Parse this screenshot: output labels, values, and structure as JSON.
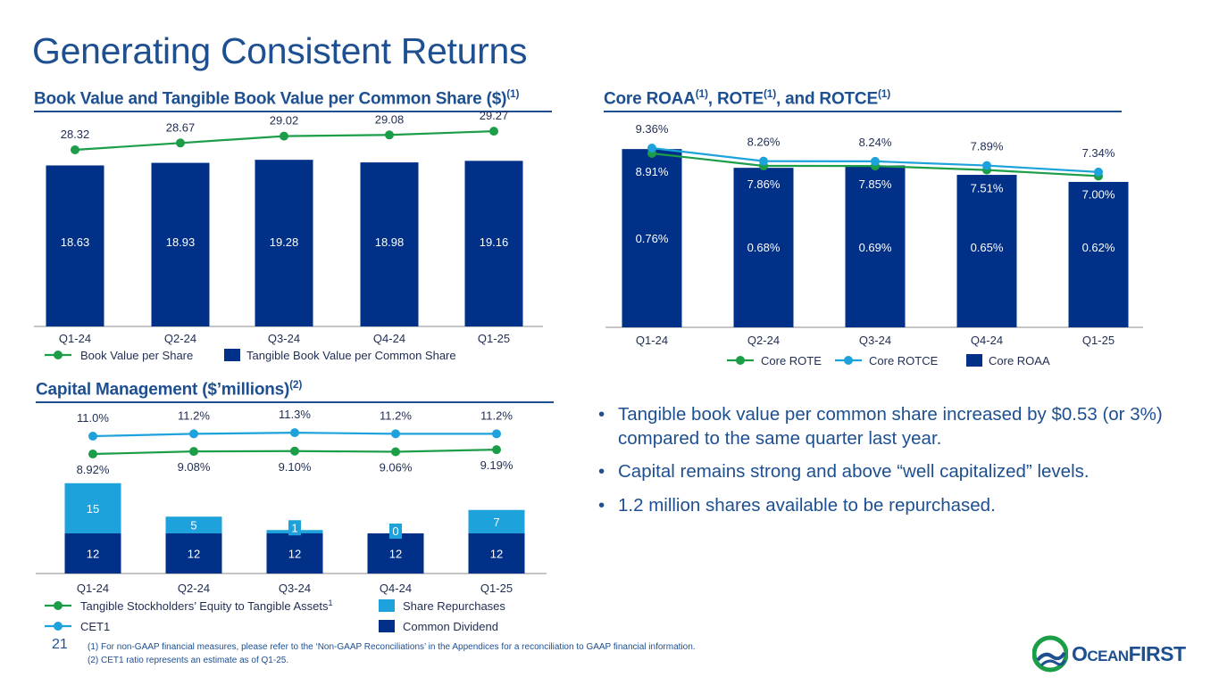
{
  "page": {
    "title": "Generating Consistent Returns",
    "page_number": "21",
    "footnotes": [
      "(1)  For non-GAAP financial measures, please refer to the ‘Non-GAAP Reconciliations’ in the Appendices for a reconciliation to GAAP financial information.",
      "(2)  CET1 ratio represents an estimate as of Q1-25."
    ],
    "logo": {
      "first": "O",
      "rest": "CEAN",
      "last": "FIRST"
    }
  },
  "sections": {
    "bv": {
      "title": "Book Value and Tangible Book Value per Common Share ($)",
      "sup": "(1)"
    },
    "returns": {
      "t1": "Core ROAA",
      "s1": "(1)",
      "t2": ", ROTE",
      "s2": "(1)",
      "t3": ", and ROTCE",
      "s3": "(1)"
    },
    "capital": {
      "title": "Capital Management ($’millions)",
      "sup": "(2)"
    }
  },
  "bullets": [
    "Tangible book value per common share increased by $0.53 (or 3%) compared to the same quarter last year.",
    "Capital remains strong and above “well capitalized” levels.",
    "1.2 million shares available to be repurchased."
  ],
  "colors": {
    "navy": "#003087",
    "green": "#1c9d48",
    "blue": "#1ea2dc",
    "text": "#1f2d52",
    "axis": "#8c8c8c"
  },
  "chart_data": [
    {
      "id": "bv",
      "type": "bar+line",
      "title": "Book Value and Tangible Book Value per Common Share ($)",
      "categories": [
        "Q1-24",
        "Q2-24",
        "Q3-24",
        "Q4-24",
        "Q1-25"
      ],
      "bars": {
        "name": "Tangible Book Value per Common Share",
        "values": [
          18.63,
          18.93,
          19.28,
          18.98,
          19.16
        ],
        "labels": [
          "18.63",
          "18.93",
          "19.28",
          "18.98",
          "19.16"
        ]
      },
      "line": {
        "name": "Book Value per Share",
        "values": [
          28.32,
          28.67,
          29.02,
          29.08,
          29.27
        ],
        "labels": [
          "28.32",
          "28.67",
          "29.02",
          "29.08",
          "29.27"
        ]
      },
      "legend": [
        "Book Value per Share",
        "Tangible Book Value per Common Share"
      ]
    },
    {
      "id": "returns",
      "type": "bar+line",
      "title": "Core ROAA, ROTE, and ROTCE",
      "categories": [
        "Q1-24",
        "Q2-24",
        "Q3-24",
        "Q4-24",
        "Q1-25"
      ],
      "bars": {
        "name": "Core ROAA",
        "values": [
          0.76,
          0.68,
          0.69,
          0.65,
          0.62
        ],
        "labels": [
          "0.76%",
          "0.68%",
          "0.69%",
          "0.65%",
          "0.62%"
        ]
      },
      "lines": [
        {
          "name": "Core ROTE",
          "values": [
            8.91,
            7.86,
            7.85,
            7.51,
            7.0
          ],
          "labels": [
            "8.91%",
            "7.86%",
            "7.85%",
            "7.51%",
            "7.00%"
          ]
        },
        {
          "name": "Core ROTCE",
          "values": [
            9.36,
            8.26,
            8.24,
            7.89,
            7.34
          ],
          "labels": [
            "9.36%",
            "8.26%",
            "8.24%",
            "7.89%",
            "7.34%"
          ]
        }
      ],
      "legend": [
        "Core ROTE",
        "Core ROTCE",
        "Core ROAA"
      ]
    },
    {
      "id": "capital",
      "type": "stacked-bar+line",
      "title": "Capital Management ($’millions)",
      "categories": [
        "Q1-24",
        "Q2-24",
        "Q3-24",
        "Q4-24",
        "Q1-25"
      ],
      "stacks": [
        {
          "name": "Common Dividend",
          "values": [
            12,
            12,
            12,
            12,
            12
          ],
          "labels": [
            "12",
            "12",
            "12",
            "12",
            "12"
          ]
        },
        {
          "name": "Share Repurchases",
          "values": [
            15,
            5,
            1,
            0,
            7
          ],
          "labels": [
            "15",
            "5",
            "1",
            "0",
            "7"
          ]
        }
      ],
      "lines": [
        {
          "name": "Tangible Stockholders’ Equity to Tangible Assets",
          "values": [
            8.92,
            9.08,
            9.1,
            9.06,
            9.19
          ],
          "labels": [
            "8.92%",
            "9.08%",
            "9.10%",
            "9.06%",
            "9.19%"
          ]
        },
        {
          "name": "CET1",
          "values": [
            11.0,
            11.2,
            11.3,
            11.2,
            11.2
          ],
          "labels": [
            "11.0%",
            "11.2%",
            "11.3%",
            "11.2%",
            "11.2%"
          ]
        }
      ],
      "legend": {
        "tse": "Tangible Stockholders’ Equity to Tangible Assets",
        "tse_sup": "1",
        "repurchases": "Share Repurchases",
        "cet1": "CET1",
        "dividend": "Common Dividend"
      }
    }
  ]
}
